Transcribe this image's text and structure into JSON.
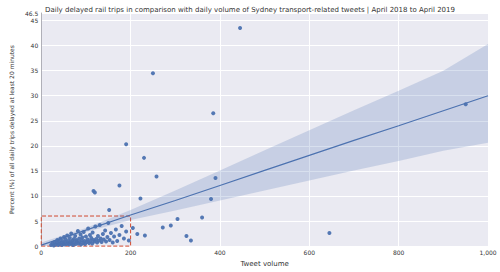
{
  "chart_data": {
    "type": "scatter",
    "title": "Daily delayed rail trips in comparison with daily volume of Sydney transport-related tweets | April 2018 to April 2019",
    "x_label": "Tweet volume",
    "y_label": "Percent (%) of all daily trips delayed at least 20 minutes",
    "xlim": [
      0,
      1000
    ],
    "xticks": [
      0,
      200,
      400,
      600,
      800,
      1000
    ],
    "ylim": [
      0,
      46.5
    ],
    "yticks": [
      0,
      5,
      10,
      15,
      20,
      25,
      30,
      35,
      40,
      45
    ],
    "grid": true,
    "series": [
      {
        "type": "scatter",
        "color": "#4c72b0",
        "marker": "circle",
        "x": [
          22,
          25,
          28,
          30,
          32,
          35,
          36,
          38,
          40,
          41,
          43,
          45,
          46,
          48,
          50,
          51,
          52,
          54,
          55,
          57,
          58,
          60,
          61,
          63,
          64,
          66,
          67,
          68,
          70,
          71,
          73,
          74,
          76,
          77,
          79,
          80,
          82,
          83,
          85,
          86,
          88,
          89,
          91,
          92,
          94,
          95,
          97,
          98,
          100,
          102,
          104,
          105,
          107,
          109,
          110,
          112,
          114,
          115,
          117,
          119,
          121,
          123,
          125,
          127,
          129,
          131,
          133,
          135,
          138,
          140,
          143,
          145,
          148,
          150,
          153,
          156,
          160,
          163,
          167,
          170,
          175,
          180,
          185,
          190,
          196,
          205,
          215,
          445,
          250,
          385,
          950,
          190,
          230,
          390,
          258,
          175,
          117,
          120,
          222,
          380,
          152,
          305,
          360,
          645,
          325,
          232,
          290,
          272,
          335
        ],
        "values": [
          0.2,
          0.5,
          0.1,
          0.8,
          0.3,
          0.6,
          1.2,
          0.2,
          0.9,
          0.4,
          1.5,
          0.7,
          0.2,
          1.0,
          0.5,
          1.8,
          0.3,
          0.8,
          1.3,
          0.4,
          2.1,
          0.6,
          1.0,
          0.3,
          1.6,
          0.8,
          2.5,
          0.5,
          1.1,
          0.2,
          1.4,
          0.7,
          2.0,
          0.4,
          1.2,
          0.9,
          3.0,
          0.5,
          1.5,
          0.8,
          2.3,
          0.3,
          1.1,
          1.7,
          0.6,
          2.8,
          1.0,
          0.4,
          1.9,
          0.8,
          1.3,
          3.5,
          0.6,
          2.2,
          1.0,
          1.6,
          0.5,
          2.7,
          1.2,
          0.9,
          3.9,
          1.4,
          0.7,
          2.0,
          1.1,
          4.2,
          1.5,
          0.8,
          2.4,
          1.3,
          3.1,
          0.9,
          1.8,
          4.6,
          1.2,
          2.6,
          0.7,
          1.9,
          3.3,
          1.0,
          2.2,
          4.0,
          1.5,
          2.9,
          1.1,
          3.6,
          2.4,
          43.5,
          34.5,
          26.5,
          28.3,
          20.3,
          17.6,
          13.6,
          13.9,
          12.1,
          11.0,
          10.7,
          9.5,
          9.4,
          7.2,
          5.4,
          5.7,
          2.6,
          2.0,
          2.1,
          4.1,
          3.7,
          1.1
        ]
      },
      {
        "type": "line",
        "color": "#4c72b0",
        "line_style": "solid",
        "x": [
          0,
          100,
          200,
          300,
          400,
          500,
          600,
          700,
          800,
          900,
          1000
        ],
        "values": [
          0.2,
          3.2,
          6.2,
          9.1,
          12.1,
          15.1,
          18.1,
          21.1,
          24.0,
          27.0,
          30.0
        ],
        "ci_lower": [
          -0.3,
          2.8,
          5.2,
          7.1,
          9.1,
          11.1,
          13.1,
          15.1,
          17.0,
          19.0,
          20.6
        ],
        "ci_upper": [
          0.7,
          3.6,
          7.2,
          11.1,
          15.1,
          19.1,
          23.1,
          27.1,
          31.0,
          35.0,
          40.3
        ]
      }
    ],
    "annotations": [
      {
        "type": "rect",
        "x": [
          0,
          200
        ],
        "y": [
          0,
          6
        ],
        "color": "#d0482f",
        "line_style": "dashed"
      }
    ]
  }
}
